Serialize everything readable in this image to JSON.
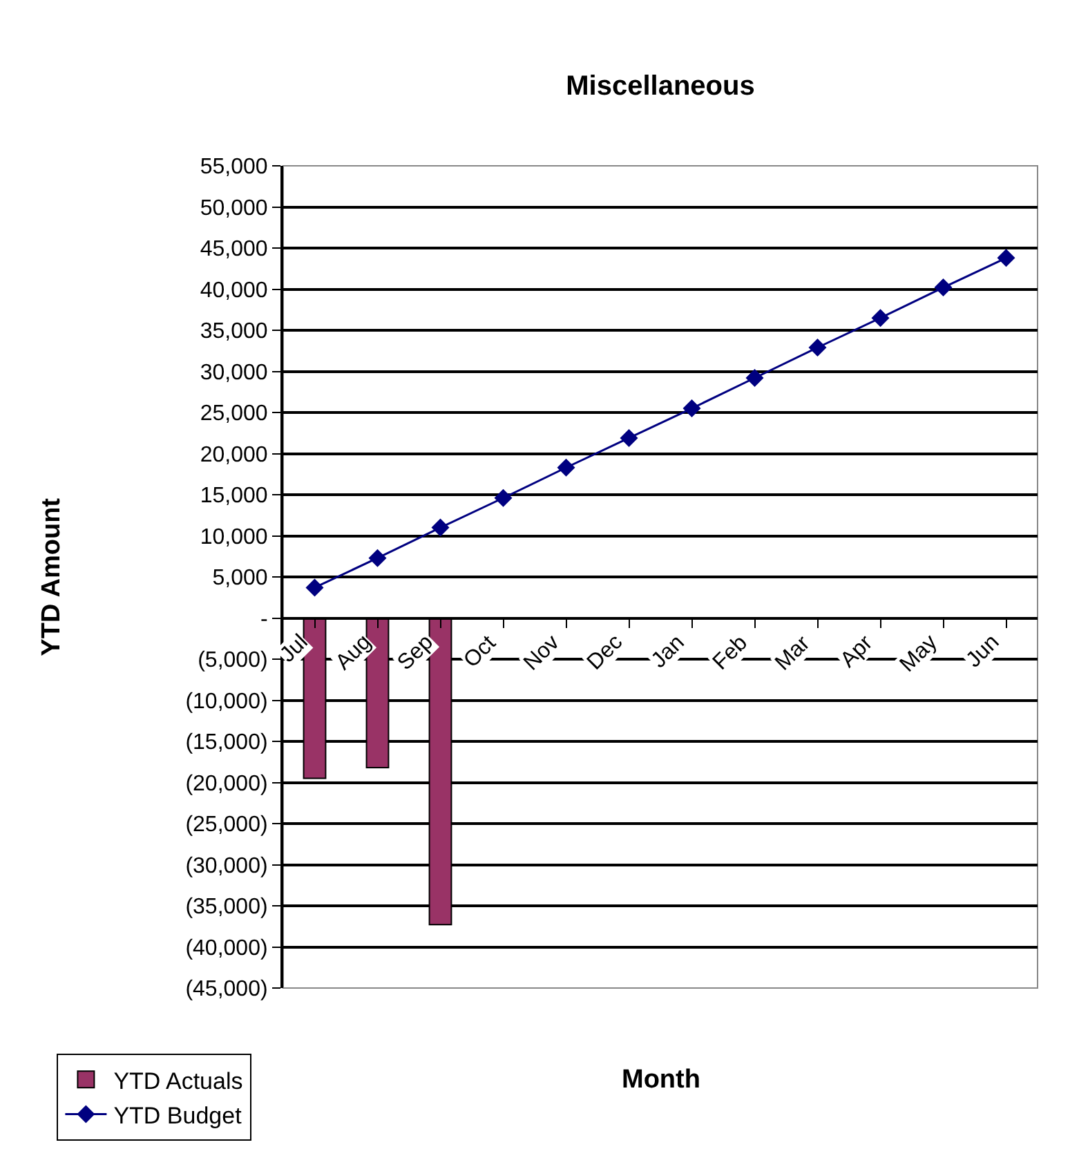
{
  "chart_data": {
    "type": "bar",
    "title": "Miscellaneous",
    "xlabel": "Month",
    "ylabel": "YTD Amount",
    "categories": [
      "Jul",
      "Aug",
      "Sep",
      "Oct",
      "Nov",
      "Dec",
      "Jan",
      "Feb",
      "Mar",
      "Apr",
      "May",
      "Jun"
    ],
    "series": [
      {
        "name": "YTD Actuals",
        "color": "#993366",
        "values": [
          -19500,
          -18200,
          -37300,
          null,
          null,
          null,
          null,
          null,
          null,
          null,
          null,
          null
        ]
      },
      {
        "name": "YTD Budget",
        "type": "line",
        "color": "#000080",
        "marker": "diamond",
        "values": [
          3700,
          7300,
          11000,
          14600,
          18300,
          21900,
          25500,
          29200,
          32900,
          36500,
          40200,
          43800
        ]
      }
    ],
    "ylim": [
      -45000,
      55000
    ],
    "yticks": [
      {
        "value": -45000,
        "label": "(45,000)"
      },
      {
        "value": -40000,
        "label": "(40,000)"
      },
      {
        "value": -35000,
        "label": "(35,000)"
      },
      {
        "value": -30000,
        "label": "(30,000)"
      },
      {
        "value": -25000,
        "label": "(25,000)"
      },
      {
        "value": -20000,
        "label": "(20,000)"
      },
      {
        "value": -15000,
        "label": "(15,000)"
      },
      {
        "value": -10000,
        "label": "(10,000)"
      },
      {
        "value": -5000,
        "label": "(5,000)"
      },
      {
        "value": 0,
        "label": "-"
      },
      {
        "value": 5000,
        "label": "5,000"
      },
      {
        "value": 10000,
        "label": "10,000"
      },
      {
        "value": 15000,
        "label": "15,000"
      },
      {
        "value": 20000,
        "label": "20,000"
      },
      {
        "value": 25000,
        "label": "25,000"
      },
      {
        "value": 30000,
        "label": "30,000"
      },
      {
        "value": 35000,
        "label": "35,000"
      },
      {
        "value": 40000,
        "label": "40,000"
      },
      {
        "value": 45000,
        "label": "45,000"
      },
      {
        "value": 50000,
        "label": "50,000"
      },
      {
        "value": 55000,
        "label": "55,000"
      }
    ],
    "grid": "y",
    "legend": "bottom left"
  }
}
